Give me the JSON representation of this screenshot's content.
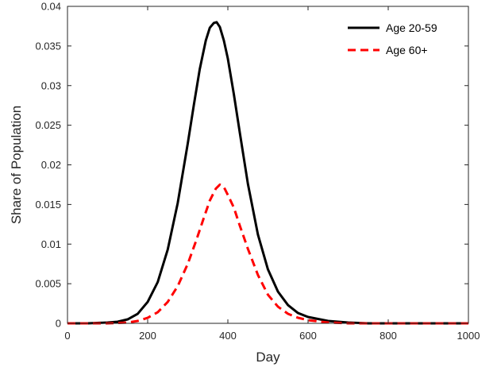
{
  "chart_data": {
    "type": "line",
    "title": "",
    "xlabel": "Day",
    "ylabel": "Share of Population",
    "xlim": [
      0,
      1000
    ],
    "ylim": [
      0,
      0.04
    ],
    "xticks": [
      0,
      200,
      400,
      600,
      800,
      1000
    ],
    "xtick_labels": [
      "0",
      "200",
      "400",
      "600",
      "800",
      "1000"
    ],
    "yticks": [
      0,
      0.005,
      0.01,
      0.015,
      0.02,
      0.025,
      0.03,
      0.035,
      0.04
    ],
    "ytick_labels": [
      "0",
      "0.005",
      "0.01",
      "0.015",
      "0.02",
      "0.025",
      "0.03",
      "0.035",
      "0.04"
    ],
    "grid": false,
    "legend_position": "top-right",
    "series": [
      {
        "name": "Age 20-59",
        "color": "#000000",
        "line_style": "solid",
        "x": [
          0,
          50,
          100,
          125,
          150,
          175,
          200,
          225,
          250,
          275,
          300,
          315,
          330,
          345,
          355,
          365,
          372,
          380,
          390,
          400,
          415,
          430,
          450,
          475,
          500,
          525,
          550,
          575,
          600,
          650,
          700,
          750,
          800,
          850,
          900,
          950,
          1000
        ],
        "y": [
          0,
          0,
          0.0001,
          0.0002,
          0.0005,
          0.0012,
          0.0027,
          0.0052,
          0.0093,
          0.0152,
          0.0227,
          0.0275,
          0.0321,
          0.0357,
          0.0373,
          0.0379,
          0.038,
          0.0374,
          0.0357,
          0.0334,
          0.0289,
          0.024,
          0.0176,
          0.0112,
          0.0068,
          0.004,
          0.0023,
          0.0013,
          0.0008,
          0.0003,
          0.0001,
          0,
          0,
          0,
          0,
          0,
          0
        ]
      },
      {
        "name": "Age 60+",
        "color": "#ff0000",
        "line_style": "dashed",
        "x": [
          0,
          50,
          100,
          150,
          175,
          200,
          225,
          250,
          275,
          300,
          320,
          340,
          355,
          370,
          380,
          390,
          400,
          415,
          430,
          450,
          475,
          500,
          525,
          550,
          575,
          600,
          650,
          700,
          750,
          800,
          850,
          900,
          950,
          1000
        ],
        "y": [
          0,
          0,
          0,
          0.0001,
          0.0003,
          0.0007,
          0.0014,
          0.0027,
          0.0047,
          0.0075,
          0.0103,
          0.0133,
          0.0155,
          0.017,
          0.0175,
          0.0172,
          0.0162,
          0.0146,
          0.0123,
          0.0094,
          0.0061,
          0.0036,
          0.0021,
          0.0012,
          0.0007,
          0.0004,
          0.0001,
          0,
          0,
          0,
          0,
          0,
          0,
          0
        ]
      }
    ]
  }
}
